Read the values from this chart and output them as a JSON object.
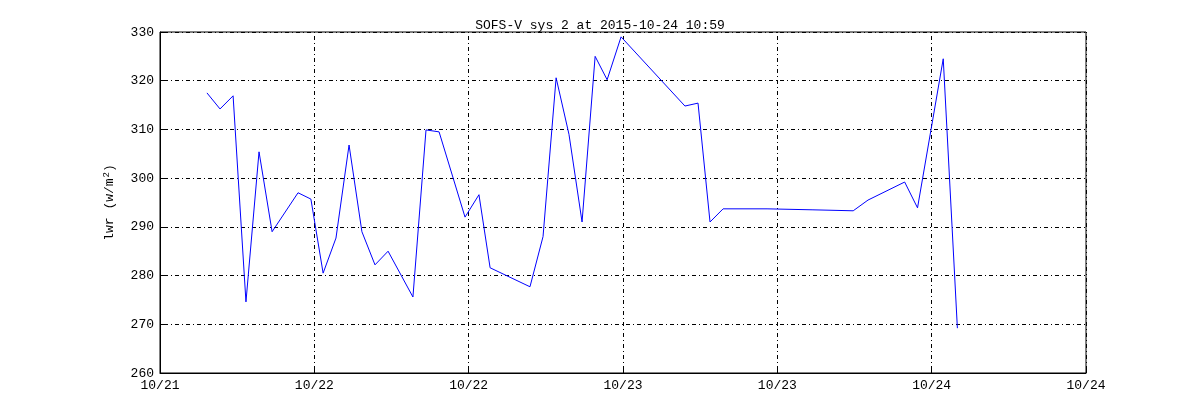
{
  "chart_data": {
    "type": "line",
    "title": "SOFS-V sys 2 at 2015-10-24 10:59",
    "ylabel": "lwr (w/m$^{2}$)",
    "x": [
      "2015-10-21T15:39",
      "2015-10-21T16:40",
      "2015-10-21T17:41",
      "2015-10-21T18:41",
      "2015-10-21T19:42",
      "2015-10-21T20:43",
      "2015-10-21T22:44",
      "2015-10-21T23:44",
      "2015-10-22T00:41",
      "2015-10-22T01:41",
      "2015-10-22T02:42",
      "2015-10-22T03:42",
      "2015-10-22T04:43",
      "2015-10-22T05:44",
      "2015-10-22T07:40",
      "2015-10-22T08:41",
      "2015-10-22T09:42",
      "2015-10-22T11:43",
      "2015-10-22T12:48",
      "2015-10-22T13:40",
      "2015-10-22T16:46",
      "2015-10-22T17:47",
      "2015-10-22T18:48",
      "2015-10-22T19:48",
      "2015-10-22T20:49",
      "2015-10-22T21:50",
      "2015-10-22T22:46",
      "2015-10-22T23:51",
      "2015-10-23T04:49",
      "2015-10-23T05:50",
      "2015-10-23T06:46",
      "2015-10-23T07:47",
      "2015-10-23T11:12",
      "2015-10-23T14:42",
      "2015-10-23T17:54",
      "2015-10-23T19:03",
      "2015-10-23T21:54",
      "2015-10-23T22:54",
      "2015-10-24T00:54",
      "2015-10-24T02:00"
    ],
    "series": [
      {
        "color": "#0000ff",
        "values": [
          317.5,
          314.2,
          316.9,
          274.6,
          305.4,
          289,
          297,
          295.7,
          280.5,
          287.7,
          306.8,
          289,
          282.2,
          285,
          275.6,
          309.9,
          309.5,
          292,
          296.6,
          281.6,
          277.7,
          288,
          320.6,
          309,
          291,
          325,
          320.2,
          329,
          314.8,
          315.4,
          291,
          293.7,
          293.7,
          293.5,
          293.3,
          295.5,
          299.2,
          293.9,
          324.5,
          269.2
        ]
      }
    ],
    "xlim": [
      "2015-10-21T12:00",
      "2015-10-24T12:00"
    ],
    "xticks": [
      {
        "value": "2015-10-21T12:00",
        "label": "10/21"
      },
      {
        "value": "2015-10-22T00:00",
        "label": "10/22"
      },
      {
        "value": "2015-10-22T12:00",
        "label": "10/22"
      },
      {
        "value": "2015-10-23T00:00",
        "label": "10/23"
      },
      {
        "value": "2015-10-23T12:00",
        "label": "10/23"
      },
      {
        "value": "2015-10-24T00:00",
        "label": "10/24"
      },
      {
        "value": "2015-10-24T12:00",
        "label": "10/24"
      }
    ],
    "ylim": [
      260,
      330
    ],
    "yticks": [
      260,
      270,
      280,
      290,
      300,
      310,
      320,
      330
    ],
    "grid": true,
    "marker": "none",
    "line_style": "solid"
  }
}
